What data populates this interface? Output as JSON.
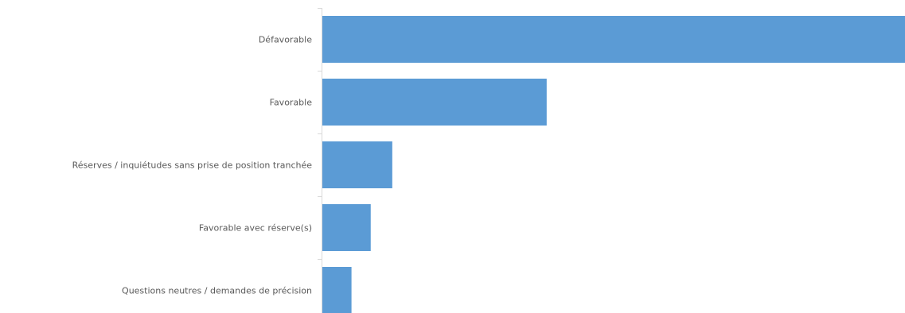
{
  "chart_data": {
    "type": "bar",
    "orientation": "horizontal",
    "categories": [
      "Défavorable",
      "Favorable",
      "Réserves / inquiétudes sans prise de position tranchée",
      "Favorable avec réserve(s)",
      "Questions neutres / demandes de précision"
    ],
    "values": [
      100,
      38.5,
      12,
      8.3,
      5
    ],
    "xlim": [
      0,
      100
    ],
    "grid": false,
    "legend": "none",
    "bar_color": "#5b9bd5"
  }
}
